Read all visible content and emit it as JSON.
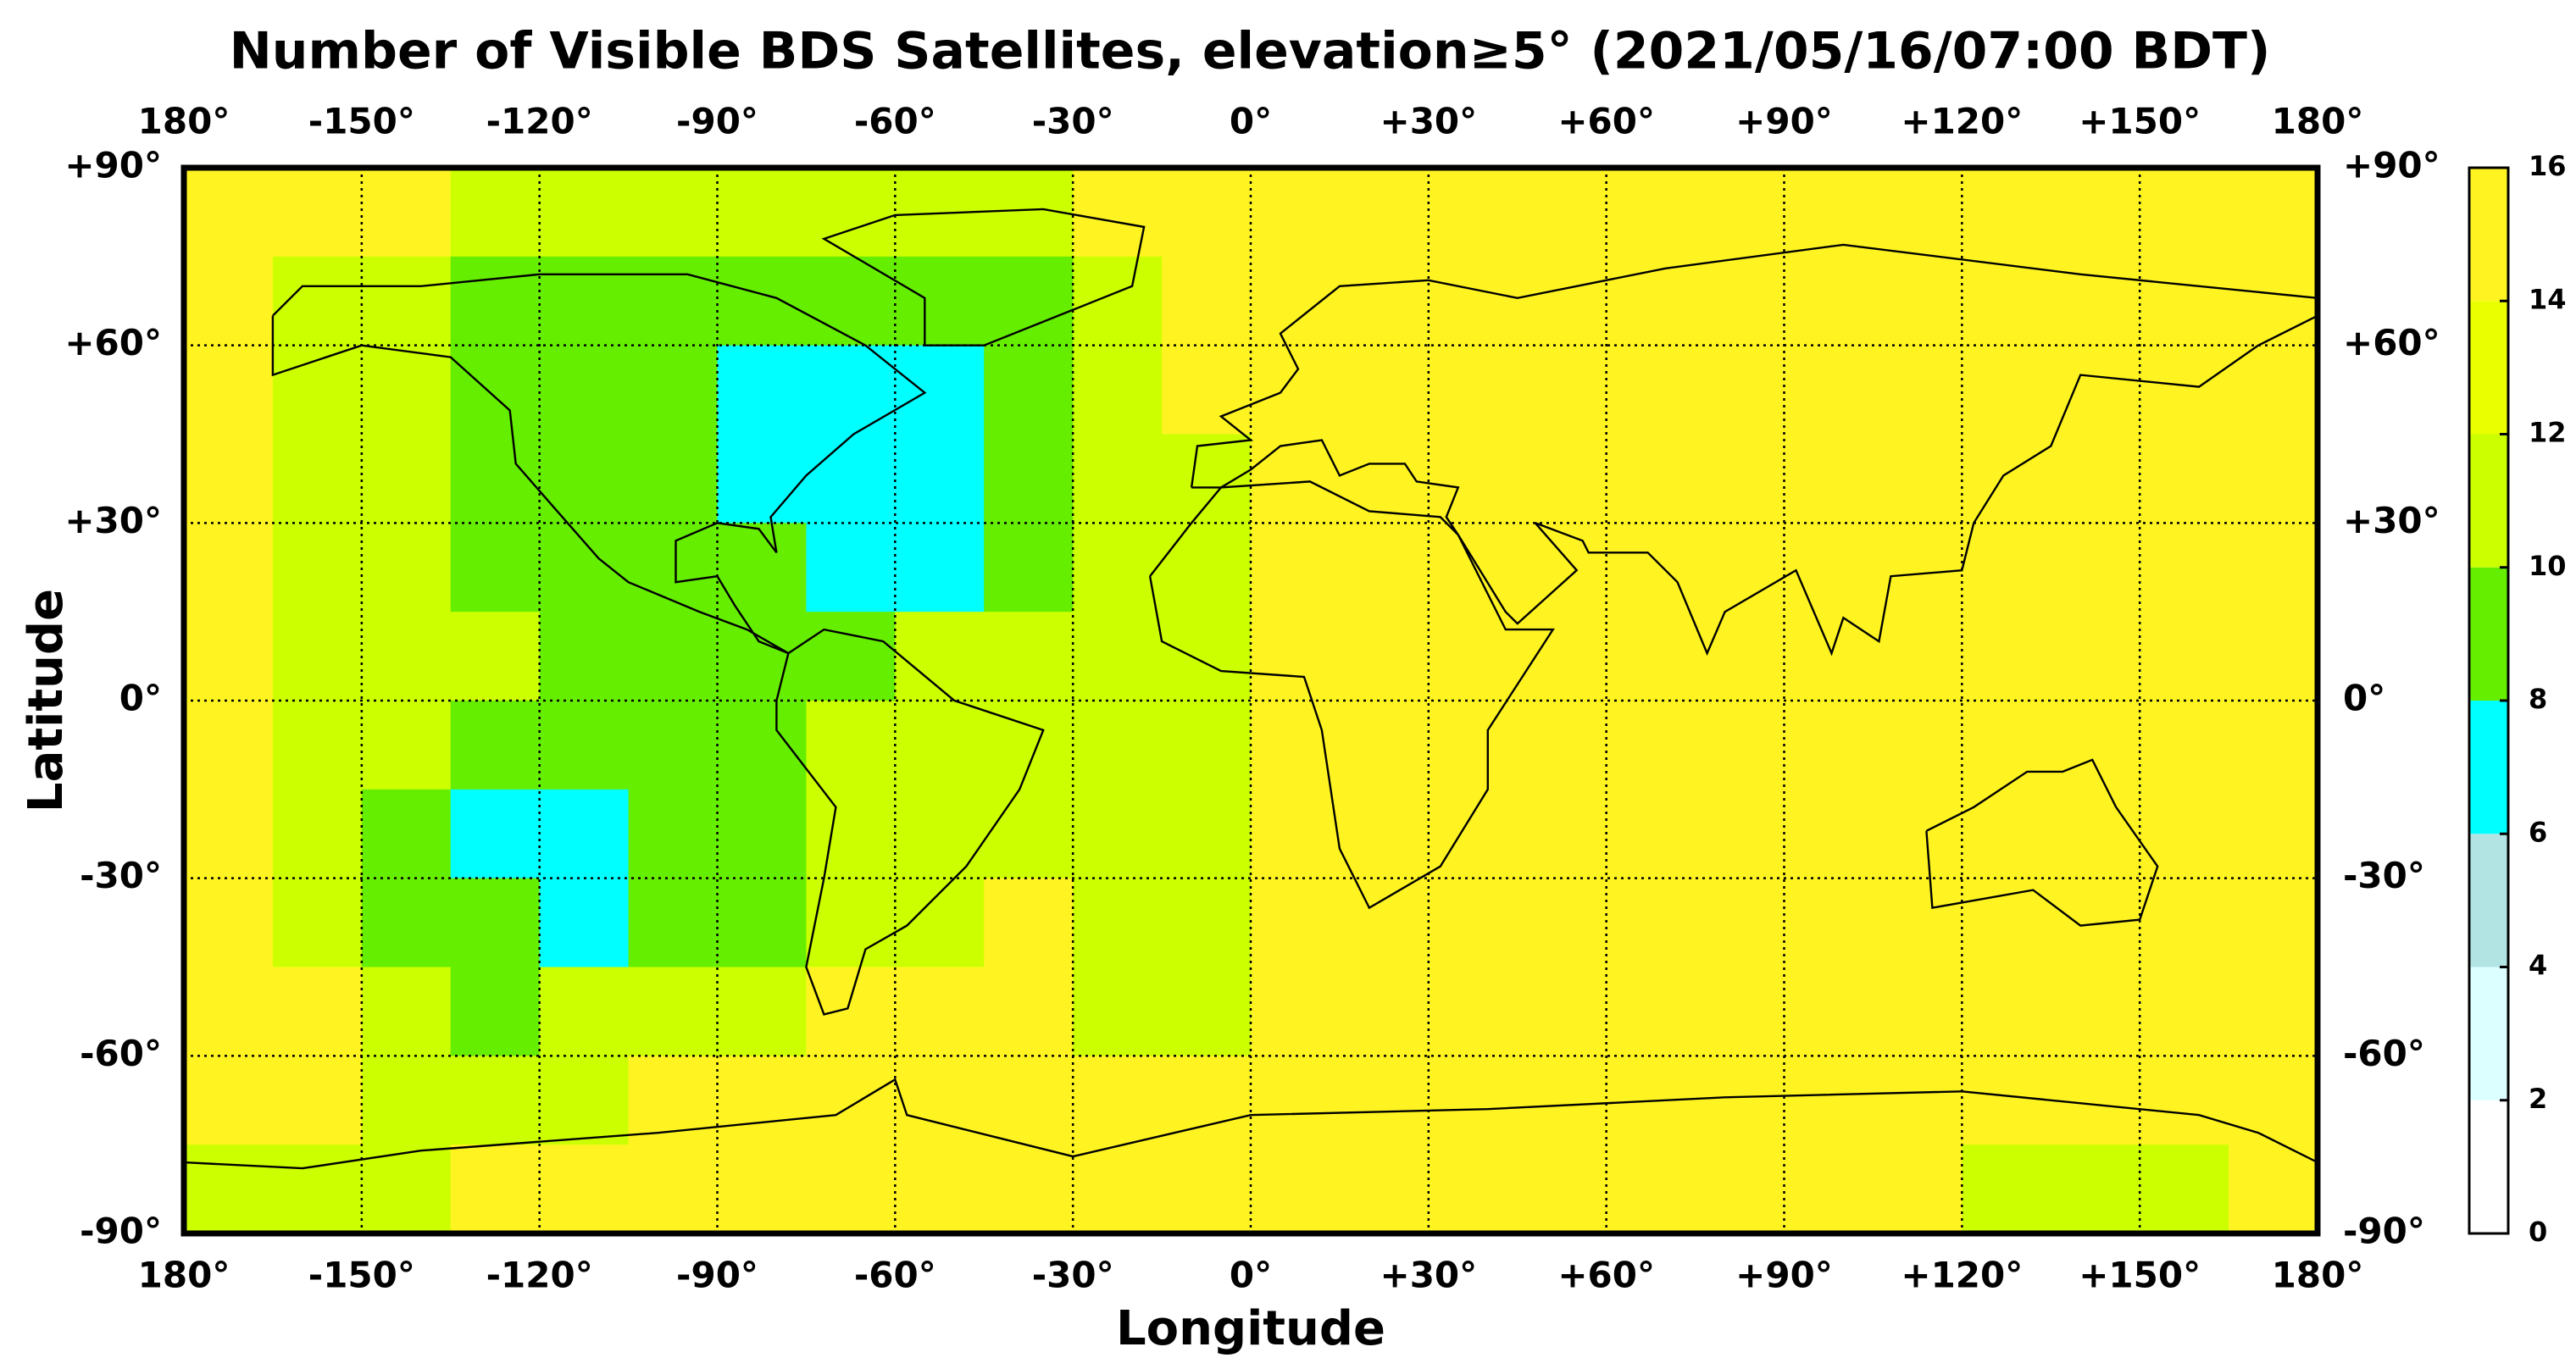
{
  "chart_data": {
    "type": "map",
    "title": "Number of Visible BDS Satellites, elevation≥5° (2021/05/16/07:00 BDT)",
    "xlabel": "Longitude",
    "ylabel": "Latitude",
    "xlim": [
      -180,
      180
    ],
    "ylim": [
      -90,
      90
    ],
    "xticks": [
      {
        "value": -180,
        "label": "180°"
      },
      {
        "value": -150,
        "label": "-150°"
      },
      {
        "value": -120,
        "label": "-120°"
      },
      {
        "value": -90,
        "label": "-90°"
      },
      {
        "value": -60,
        "label": "-60°"
      },
      {
        "value": -30,
        "label": "-30°"
      },
      {
        "value": 0,
        "label": "0°"
      },
      {
        "value": 30,
        "label": "+30°"
      },
      {
        "value": 60,
        "label": "+60°"
      },
      {
        "value": 90,
        "label": "+90°"
      },
      {
        "value": 120,
        "label": "+120°"
      },
      {
        "value": 150,
        "label": "+150°"
      },
      {
        "value": 180,
        "label": "180°"
      }
    ],
    "yticks": [
      {
        "value": 90,
        "label": "+90°"
      },
      {
        "value": 60,
        "label": "+60°"
      },
      {
        "value": 30,
        "label": "+30°"
      },
      {
        "value": 0,
        "label": "0°"
      },
      {
        "value": -30,
        "label": "-30°"
      },
      {
        "value": -60,
        "label": "-60°"
      },
      {
        "value": -90,
        "label": "-90°"
      }
    ],
    "grid": true,
    "colorbar": {
      "ticks": [
        0,
        2,
        4,
        6,
        8,
        10,
        12,
        14,
        16
      ],
      "colors": [
        "#ffffff",
        "#dcffff",
        "#b2e4e4",
        "#00ffff",
        "#66ee00",
        "#ccff00",
        "#eaff00",
        "#fff422"
      ]
    },
    "cells": {
      "lon_edges": [
        -180,
        -165,
        -150,
        -135,
        -120,
        -105,
        -90,
        -75,
        -60,
        -45,
        -30,
        -15,
        0,
        15,
        30,
        45,
        60,
        75,
        90,
        105,
        120,
        135,
        150,
        165,
        180
      ],
      "lat_edges": [
        90,
        75,
        60,
        45,
        30,
        15,
        0,
        -15,
        -30,
        -45,
        -60,
        -75,
        -90
      ],
      "values": [
        [
          15,
          15,
          15,
          11,
          11,
          11,
          11,
          11,
          11,
          11,
          15,
          15,
          15,
          15,
          15,
          15,
          15,
          15,
          15,
          15,
          15,
          15,
          15,
          15
        ],
        [
          15,
          11,
          11,
          9,
          9,
          9,
          9,
          9,
          9,
          9,
          11,
          15,
          15,
          15,
          15,
          15,
          15,
          15,
          15,
          15,
          15,
          15,
          15,
          15
        ],
        [
          15,
          11,
          11,
          9,
          9,
          9,
          7,
          7,
          7,
          9,
          11,
          15,
          15,
          15,
          15,
          15,
          15,
          15,
          15,
          15,
          15,
          15,
          15,
          15
        ],
        [
          15,
          11,
          11,
          9,
          9,
          9,
          7,
          7,
          7,
          9,
          11,
          11,
          15,
          15,
          15,
          15,
          15,
          15,
          15,
          15,
          15,
          15,
          15,
          15
        ],
        [
          15,
          11,
          11,
          9,
          9,
          9,
          9,
          7,
          7,
          9,
          11,
          11,
          15,
          15,
          15,
          15,
          15,
          15,
          15,
          15,
          15,
          15,
          15,
          15
        ],
        [
          15,
          11,
          11,
          11,
          9,
          9,
          9,
          9,
          11,
          11,
          11,
          11,
          15,
          15,
          15,
          15,
          15,
          15,
          15,
          15,
          15,
          15,
          15,
          15
        ],
        [
          15,
          11,
          11,
          9,
          9,
          9,
          9,
          11,
          11,
          11,
          11,
          11,
          15,
          15,
          15,
          15,
          15,
          15,
          15,
          15,
          15,
          15,
          15,
          15
        ],
        [
          15,
          11,
          9,
          7,
          7,
          9,
          9,
          11,
          11,
          11,
          11,
          11,
          15,
          15,
          15,
          15,
          15,
          15,
          15,
          15,
          15,
          15,
          15,
          15
        ],
        [
          15,
          11,
          9,
          9,
          7,
          9,
          9,
          11,
          11,
          15,
          11,
          11,
          15,
          15,
          15,
          15,
          15,
          15,
          15,
          15,
          15,
          15,
          15,
          15
        ],
        [
          15,
          15,
          11,
          9,
          11,
          11,
          11,
          15,
          15,
          15,
          11,
          11,
          15,
          15,
          15,
          15,
          15,
          15,
          15,
          15,
          15,
          15,
          15,
          15
        ],
        [
          15,
          15,
          11,
          11,
          11,
          15,
          15,
          15,
          15,
          15,
          15,
          15,
          15,
          15,
          15,
          15,
          15,
          15,
          15,
          15,
          15,
          15,
          15,
          15
        ],
        [
          11,
          11,
          11,
          15,
          15,
          15,
          15,
          15,
          15,
          15,
          15,
          15,
          15,
          15,
          15,
          15,
          15,
          15,
          15,
          15,
          11,
          11,
          11,
          15
        ]
      ]
    }
  }
}
